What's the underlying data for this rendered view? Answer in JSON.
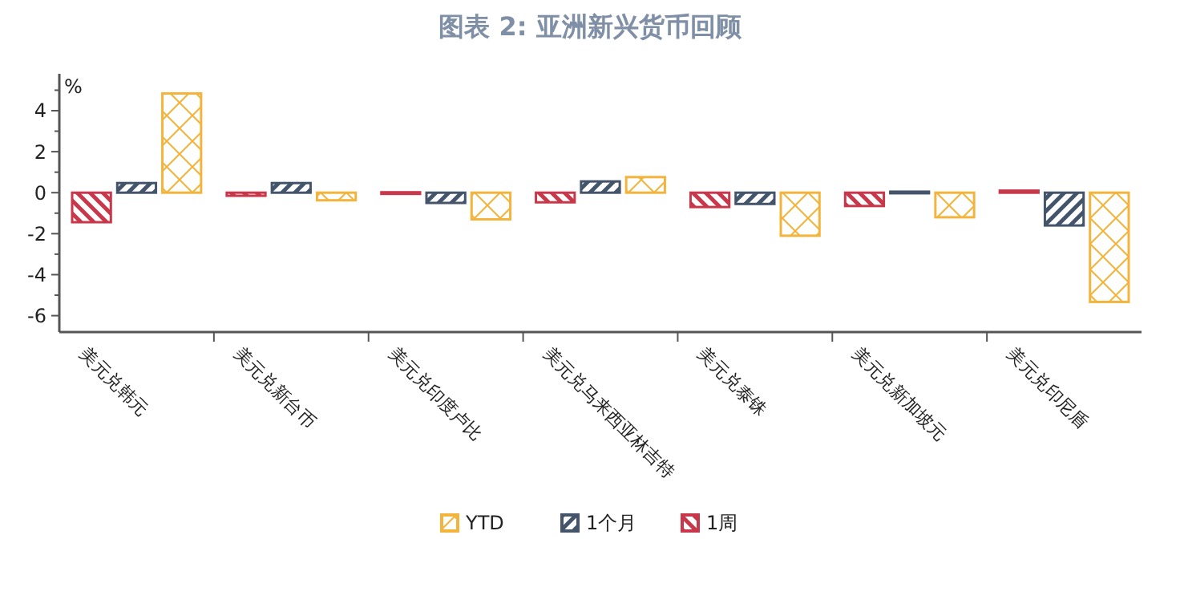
{
  "chart_data": {
    "type": "bar",
    "title": "图表 2:   亚洲新兴货币回顾",
    "ylabel": "%",
    "categories": [
      "美元兑韩元",
      "美元兑新台币",
      "美元兑印度卢比",
      "美元兑马来西亚林吉特",
      "美元兑泰铢",
      "美元兑新加坡元",
      "美元兑印尼盾"
    ],
    "series": [
      {
        "name": "1周",
        "color": "#c8374a",
        "values": [
          -1.44,
          -0.15,
          0.02,
          -0.47,
          -0.7,
          -0.65,
          0.1
        ]
      },
      {
        "name": "1个月",
        "color": "#44546a",
        "values": [
          0.47,
          0.47,
          -0.5,
          0.55,
          -0.55,
          0.05,
          -1.6
        ]
      },
      {
        "name": "YTD",
        "color": "#f4b43c",
        "values": [
          4.84,
          -0.37,
          -1.3,
          0.76,
          -2.1,
          -1.2,
          -5.33
        ]
      }
    ],
    "ylim": [
      -6.8,
      5.8
    ],
    "yticks": [
      {
        "value": -6,
        "label": "-6"
      },
      {
        "value": -5,
        "label": null
      },
      {
        "value": -4,
        "label": "-4"
      },
      {
        "value": -3,
        "label": null
      },
      {
        "value": -2,
        "label": "-2"
      },
      {
        "value": -1,
        "label": null
      },
      0,
      {
        "value": 1,
        "label": null
      },
      2,
      {
        "value": 3,
        "label": null
      },
      4,
      {
        "value": 5,
        "label": null
      }
    ],
    "legend": "bottom",
    "grid": false
  }
}
